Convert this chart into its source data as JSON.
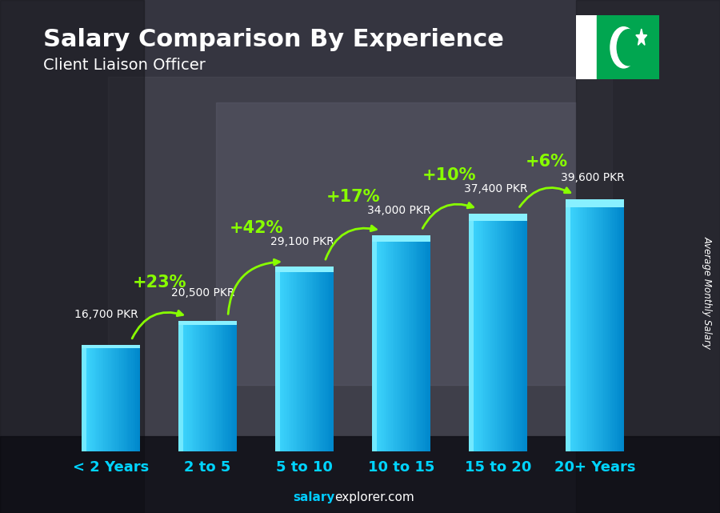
{
  "title": "Salary Comparison By Experience",
  "subtitle": "Client Liaison Officer",
  "categories": [
    "< 2 Years",
    "2 to 5",
    "5 to 10",
    "10 to 15",
    "15 to 20",
    "20+ Years"
  ],
  "values": [
    16700,
    20500,
    29100,
    34000,
    37400,
    39600
  ],
  "value_labels": [
    "16,700 PKR",
    "20,500 PKR",
    "29,100 PKR",
    "34,000 PKR",
    "37,400 PKR",
    "39,600 PKR"
  ],
  "pct_labels": [
    "+23%",
    "+42%",
    "+17%",
    "+10%",
    "+6%"
  ],
  "bar_color_main": "#00b8e6",
  "bar_color_light": "#40d8ff",
  "bar_color_dark": "#0077aa",
  "bar_color_top": "#55e8ff",
  "background_color": "#1a1a2e",
  "bg_overlay": "#2a3a4a",
  "title_color": "#ffffff",
  "subtitle_color": "#ffffff",
  "value_label_color": "#ffffff",
  "pct_color": "#88ff00",
  "xlabel_color": "#00d4ff",
  "ylabel": "Average Monthly Salary",
  "footer_salary_color": "#00ccff",
  "footer_rest_color": "#ffffff",
  "ylim_max": 50000,
  "flag_green": "#01a650",
  "flag_white": "#ffffff",
  "bar_width": 0.6,
  "title_fontsize": 22,
  "subtitle_fontsize": 14,
  "xlabel_fontsize": 13,
  "pct_fontsize": 15,
  "value_label_fontsize": 10
}
